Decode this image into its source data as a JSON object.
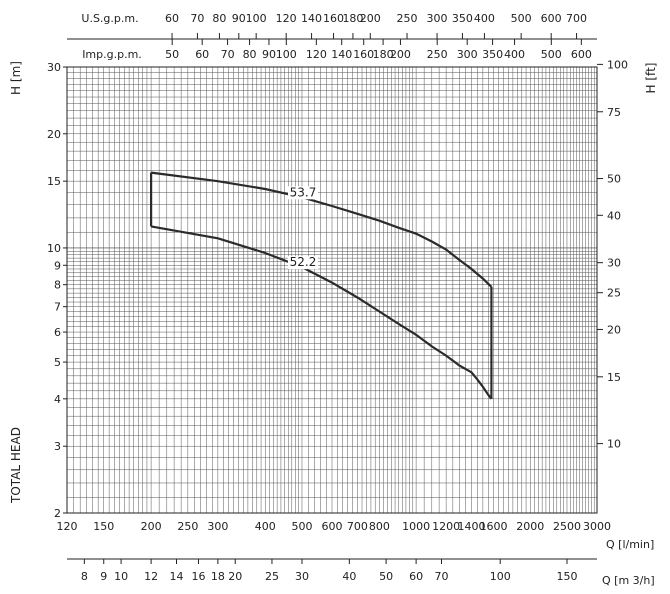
{
  "chart_data": {
    "type": "line",
    "xscale": "log",
    "yscale": "log",
    "xlim": [
      120,
      3000
    ],
    "ylim": [
      2,
      30
    ],
    "y_unit_label": "H [m]",
    "y_right_unit_label": "H [ft]",
    "y_side_label": "TOTAL HEAD",
    "x_unit_label": "Q [l/min]",
    "x2_unit_label": "Q [m 3/h]",
    "grid": true,
    "x_ticks_lpm": [
      "120",
      "150",
      "200",
      "250",
      "300",
      "400",
      "500",
      "600",
      "700",
      "800",
      "1000",
      "1200",
      "1400",
      "1600",
      "2000",
      "2500",
      "3000"
    ],
    "y_ticks_m": [
      "2",
      "3",
      "4",
      "5",
      "6",
      "7",
      "8",
      "9",
      "10",
      "15",
      "20",
      "30"
    ],
    "y_ticks_ft": [
      "10",
      "15",
      "20",
      "25",
      "30",
      "40",
      "50",
      "75",
      "100"
    ],
    "x_ticks_m3h": [
      "8",
      "9",
      "10",
      "12",
      "14",
      "16",
      "18",
      "20",
      "25",
      "30",
      "40",
      "50",
      "60",
      "70",
      "100",
      "150"
    ],
    "us_gpm_label": "U.S.g.p.m.",
    "us_gpm_ticks": [
      "60",
      "70",
      "80",
      "90",
      "100",
      "120",
      "140",
      "160",
      "180",
      "200",
      "250",
      "300",
      "350",
      "400",
      "500",
      "600",
      "700"
    ],
    "imp_gpm_label": "Imp.g.p.m.",
    "imp_gpm_ticks": [
      "50",
      "60",
      "70",
      "80",
      "90",
      "100",
      "120",
      "140",
      "160",
      "180",
      "200",
      "250",
      "300",
      "350",
      "400",
      "500",
      "600"
    ],
    "series": [
      {
        "name": "53.7",
        "x": [
          200,
          300,
          400,
          500,
          600,
          700,
          800,
          900,
          1000,
          1100,
          1200,
          1300,
          1400,
          1500,
          1580
        ],
        "y": [
          15.8,
          15.0,
          14.3,
          13.6,
          12.9,
          12.3,
          11.8,
          11.3,
          10.9,
          10.4,
          9.9,
          9.3,
          8.8,
          8.3,
          7.9
        ]
      },
      {
        "name": "52.2",
        "x": [
          200,
          300,
          400,
          500,
          600,
          700,
          800,
          900,
          1000,
          1100,
          1200,
          1300,
          1400,
          1450,
          1500,
          1550,
          1580
        ],
        "y": [
          11.4,
          10.6,
          9.7,
          8.9,
          8.1,
          7.4,
          6.8,
          6.3,
          5.9,
          5.5,
          5.2,
          4.9,
          4.7,
          4.5,
          4.3,
          4.1,
          4.0
        ]
      }
    ]
  }
}
